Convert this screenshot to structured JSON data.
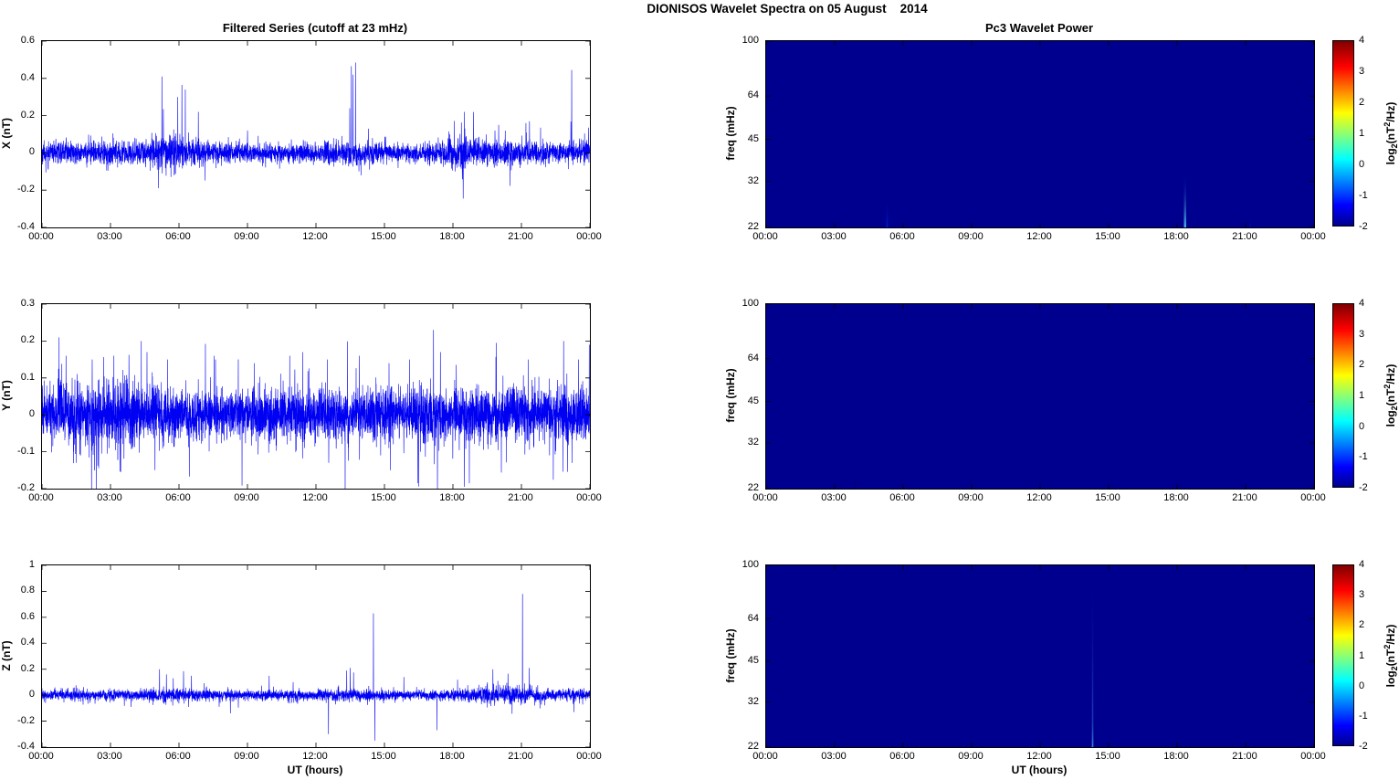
{
  "figure": {
    "title": "DIONISOS Wavelet Spectra on 05 August    2014"
  },
  "colorbar": {
    "ticks": [
      "4",
      "3",
      "2",
      "1",
      "0",
      "-1",
      "-2"
    ],
    "tick_values": [
      4,
      3,
      2,
      1,
      0,
      -1,
      -2
    ],
    "range": [
      -2,
      4
    ],
    "label_parts": {
      "pre": "log",
      "sub": "2",
      "mid": "(nT",
      "sup": "2",
      "post": "/Hz)"
    },
    "gradient_colors": [
      "#00008F",
      "#0000FF",
      "#00FFFF",
      "#FFFF00",
      "#FF0000",
      "#7F0000"
    ],
    "gradient_stops": [
      0,
      0.11,
      0.36,
      0.61,
      0.86,
      1
    ]
  },
  "chart_data": [
    {
      "type": "line",
      "id": "x-series",
      "title": "Filtered Series (cutoff at 23 mHz)",
      "ylabel": "X (nT)",
      "xlim": [
        0,
        24
      ],
      "ylim": [
        -0.4,
        0.6
      ],
      "x_ticks": [
        0,
        3,
        6,
        9,
        12,
        15,
        18,
        21,
        24
      ],
      "x_tick_labels": [
        "00:00",
        "03:00",
        "06:00",
        "09:00",
        "12:00",
        "15:00",
        "18:00",
        "21:00",
        "00:00"
      ],
      "y_ticks": [
        0.6,
        0.4,
        0.2,
        0,
        -0.2,
        -0.4
      ],
      "y_tick_labels": [
        "0.6",
        "0.4",
        "0.2",
        "0",
        "-0.2",
        "-0.4"
      ],
      "line_color": "#0000f2",
      "noise": {
        "n": 4000,
        "seed": 11,
        "tail_prob": 0.04,
        "tail_gain": 2.0,
        "envelope": [
          [
            0,
            0.028
          ],
          [
            3.5,
            0.03
          ],
          [
            4.8,
            0.042
          ],
          [
            5.6,
            0.05
          ],
          [
            6.5,
            0.038
          ],
          [
            8,
            0.028
          ],
          [
            10,
            0.026
          ],
          [
            12,
            0.028
          ],
          [
            13,
            0.032
          ],
          [
            14,
            0.032
          ],
          [
            16,
            0.027
          ],
          [
            17.5,
            0.032
          ],
          [
            18.4,
            0.045
          ],
          [
            19,
            0.038
          ],
          [
            20,
            0.034
          ],
          [
            21,
            0.036
          ],
          [
            22,
            0.028
          ],
          [
            24,
            0.028
          ]
        ]
      },
      "spikes": [
        [
          5.25,
          0.41
        ],
        [
          5.32,
          0.235
        ],
        [
          5.1,
          -0.19
        ],
        [
          5.95,
          0.3
        ],
        [
          6.13,
          0.365
        ],
        [
          6.28,
          0.34
        ],
        [
          6.85,
          0.22
        ],
        [
          9.0,
          0.12
        ],
        [
          13.48,
          0.24
        ],
        [
          13.55,
          0.465
        ],
        [
          13.62,
          0.42
        ],
        [
          13.73,
          0.485
        ],
        [
          14.3,
          0.13
        ],
        [
          18.45,
          -0.245
        ],
        [
          18.5,
          0.22
        ],
        [
          20.0,
          0.15
        ],
        [
          21.2,
          0.16
        ],
        [
          23.2,
          0.445
        ]
      ]
    },
    {
      "type": "heatmap",
      "id": "x-spectrogram",
      "title": "Pc3 Wavelet Power",
      "ylabel": "freq (mHz)",
      "xlim": [
        0,
        24
      ],
      "ylim": [
        22,
        100
      ],
      "y_scale": "log",
      "x_ticks": [
        0,
        3,
        6,
        9,
        12,
        15,
        18,
        21,
        24
      ],
      "x_tick_labels": [
        "00:00",
        "03:00",
        "06:00",
        "09:00",
        "12:00",
        "15:00",
        "18:00",
        "21:00",
        "00:00"
      ],
      "y_ticks": [
        100,
        64,
        45,
        32,
        22
      ],
      "y_tick_labels": [
        "100",
        "64",
        "45",
        "32",
        "22"
      ],
      "background_value": -2,
      "background_color": "#00008F",
      "features": [
        {
          "t": 5.3,
          "f_lo": 22,
          "f_hi": 28,
          "color": "#0018c8",
          "width": 2
        },
        {
          "t": 18.35,
          "f_lo": 22,
          "f_hi": 34,
          "color": "#49b6e9",
          "width": 2.5
        },
        {
          "t": 21.2,
          "f_lo": 22,
          "f_hi": 24,
          "color": "#000a9e",
          "width": 1.5
        }
      ]
    },
    {
      "type": "line",
      "id": "y-series",
      "ylabel": "Y (nT)",
      "xlim": [
        0,
        24
      ],
      "ylim": [
        -0.2,
        0.3
      ],
      "x_ticks": [
        0,
        3,
        6,
        9,
        12,
        15,
        18,
        21,
        24
      ],
      "x_tick_labels": [
        "00:00",
        "03:00",
        "06:00",
        "09:00",
        "12:00",
        "15:00",
        "18:00",
        "21:00",
        "00:00"
      ],
      "y_ticks": [
        0.3,
        0.2,
        0.1,
        0,
        -0.1,
        -0.2
      ],
      "y_tick_labels": [
        "0.3",
        "0.2",
        "0.1",
        "0",
        "-0.1",
        "-0.2"
      ],
      "line_color": "#0000f2",
      "noise": {
        "n": 5000,
        "seed": 23,
        "tail_prob": 0.06,
        "tail_gain": 2.1,
        "envelope": [
          [
            0,
            0.036
          ],
          [
            1,
            0.04
          ],
          [
            2.5,
            0.038
          ],
          [
            4,
            0.042
          ],
          [
            5,
            0.038
          ],
          [
            6,
            0.034
          ],
          [
            8,
            0.032
          ],
          [
            10,
            0.033
          ],
          [
            12,
            0.032
          ],
          [
            14,
            0.033
          ],
          [
            16,
            0.033
          ],
          [
            17,
            0.036
          ],
          [
            18,
            0.033
          ],
          [
            20,
            0.033
          ],
          [
            22,
            0.034
          ],
          [
            24,
            0.036
          ]
        ]
      },
      "spikes": [
        [
          0.75,
          0.21
        ],
        [
          1.05,
          0.16
        ],
        [
          1.5,
          -0.13
        ],
        [
          2.2,
          0.15
        ],
        [
          3.15,
          0.16
        ],
        [
          4.35,
          0.2
        ],
        [
          4.6,
          0.17
        ],
        [
          4.95,
          -0.15
        ],
        [
          5.5,
          0.15
        ],
        [
          7.6,
          0.15
        ],
        [
          9.3,
          0.14
        ],
        [
          10.85,
          0.16
        ],
        [
          12.5,
          0.15
        ],
        [
          13.9,
          0.16
        ],
        [
          15.2,
          0.14
        ],
        [
          16.1,
          0.15
        ],
        [
          17.15,
          0.23
        ],
        [
          17.45,
          0.17
        ],
        [
          18.5,
          -0.195
        ],
        [
          19.9,
          0.195
        ],
        [
          21.3,
          0.15
        ],
        [
          22.85,
          0.2
        ],
        [
          23.5,
          0.15
        ]
      ]
    },
    {
      "type": "heatmap",
      "id": "y-spectrogram",
      "ylabel": "freq (mHz)",
      "xlim": [
        0,
        24
      ],
      "ylim": [
        22,
        100
      ],
      "y_scale": "log",
      "x_ticks": [
        0,
        3,
        6,
        9,
        12,
        15,
        18,
        21,
        24
      ],
      "x_tick_labels": [
        "00:00",
        "03:00",
        "06:00",
        "09:00",
        "12:00",
        "15:00",
        "18:00",
        "21:00",
        "00:00"
      ],
      "y_ticks": [
        100,
        64,
        45,
        32,
        22
      ],
      "y_tick_labels": [
        "100",
        "64",
        "45",
        "32",
        "22"
      ],
      "background_value": -2,
      "background_color": "#00008F",
      "features": [
        {
          "t": 3.9,
          "f_lo": 22,
          "f_hi": 26,
          "color": "#00006e",
          "width": 2
        }
      ]
    },
    {
      "type": "line",
      "id": "z-series",
      "ylabel": "Z (nT)",
      "xlabel": "UT (hours)",
      "xlim": [
        0,
        24
      ],
      "ylim": [
        -0.4,
        1
      ],
      "x_ticks": [
        0,
        3,
        6,
        9,
        12,
        15,
        18,
        21,
        24
      ],
      "x_tick_labels": [
        "00:00",
        "03:00",
        "06:00",
        "09:00",
        "12:00",
        "15:00",
        "18:00",
        "21:00",
        "00:00"
      ],
      "y_ticks": [
        1,
        0.8,
        0.6,
        0.4,
        0.2,
        0,
        -0.2,
        -0.4
      ],
      "y_tick_labels": [
        "1",
        "0.8",
        "0.6",
        "0.4",
        "0.2",
        "0",
        "-0.2",
        "-0.4"
      ],
      "line_color": "#0000f2",
      "noise": {
        "n": 4000,
        "seed": 37,
        "tail_prob": 0.035,
        "tail_gain": 2.0,
        "envelope": [
          [
            0,
            0.02
          ],
          [
            4,
            0.021
          ],
          [
            5,
            0.026
          ],
          [
            6.5,
            0.024
          ],
          [
            8,
            0.02
          ],
          [
            12,
            0.021
          ],
          [
            13.5,
            0.024
          ],
          [
            15,
            0.021
          ],
          [
            17,
            0.02
          ],
          [
            18.8,
            0.026
          ],
          [
            19.5,
            0.034
          ],
          [
            20.5,
            0.036
          ],
          [
            21.5,
            0.03
          ],
          [
            22.5,
            0.022
          ],
          [
            24,
            0.022
          ]
        ]
      },
      "spikes": [
        [
          3.9,
          -0.09
        ],
        [
          5.15,
          0.2
        ],
        [
          5.45,
          0.16
        ],
        [
          5.75,
          0.13
        ],
        [
          6.2,
          0.185
        ],
        [
          6.55,
          0.15
        ],
        [
          8.25,
          -0.14
        ],
        [
          9.95,
          0.15
        ],
        [
          11.0,
          0.1
        ],
        [
          12.55,
          -0.3
        ],
        [
          13.35,
          0.19
        ],
        [
          13.5,
          0.21
        ],
        [
          13.65,
          0.175
        ],
        [
          14.52,
          0.63
        ],
        [
          14.58,
          -0.35
        ],
        [
          15.85,
          0.14
        ],
        [
          17.3,
          -0.27
        ],
        [
          18.2,
          0.12
        ],
        [
          19.75,
          0.2
        ],
        [
          21.05,
          0.78
        ],
        [
          21.35,
          0.21
        ],
        [
          23.3,
          -0.13
        ]
      ]
    },
    {
      "type": "heatmap",
      "id": "z-spectrogram",
      "ylabel": "freq (mHz)",
      "xlabel": "UT (hours)",
      "xlim": [
        0,
        24
      ],
      "ylim": [
        22,
        100
      ],
      "y_scale": "log",
      "x_ticks": [
        0,
        3,
        6,
        9,
        12,
        15,
        18,
        21,
        24
      ],
      "x_tick_labels": [
        "00:00",
        "03:00",
        "06:00",
        "09:00",
        "12:00",
        "15:00",
        "18:00",
        "21:00",
        "00:00"
      ],
      "y_ticks": [
        100,
        64,
        45,
        32,
        22
      ],
      "y_tick_labels": [
        "100",
        "64",
        "45",
        "32",
        "22"
      ],
      "background_value": -2,
      "background_color": "#00008F",
      "features": [
        {
          "t": 14.3,
          "f_lo": 22,
          "f_hi": 90,
          "color": "#2b55c8",
          "width": 1.5
        },
        {
          "t": 14.3,
          "f_lo": 22,
          "f_hi": 30,
          "color": "#3c8ad8",
          "width": 1.5
        }
      ]
    }
  ]
}
